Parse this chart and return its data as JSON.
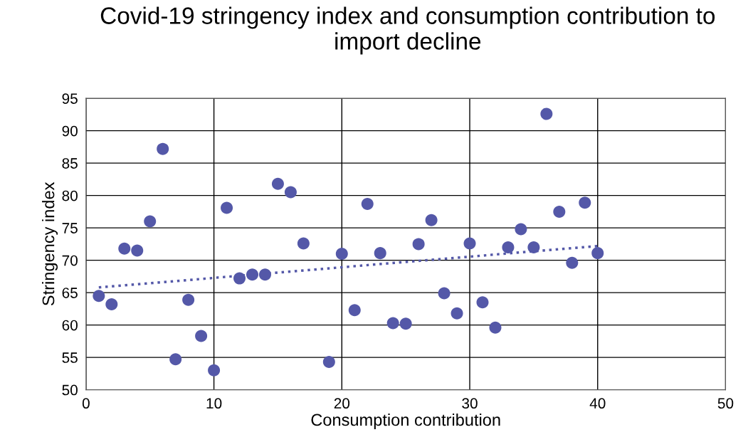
{
  "chart_data": {
    "type": "scatter",
    "title": "Covid-19 stringency index and consumption contribution to import decline",
    "xlabel": "Consumption contribution",
    "ylabel": "Stringency index",
    "xlim": [
      0,
      50
    ],
    "xticks": [
      0,
      10,
      20,
      30,
      40,
      50
    ],
    "ylim": [
      50,
      95
    ],
    "yticks": [
      50,
      55,
      60,
      65,
      70,
      75,
      80,
      85,
      90,
      95
    ],
    "grid": true,
    "marker": "circle",
    "series": [
      {
        "color": "#5458a8",
        "x": [
          1,
          2,
          3,
          4,
          5,
          6,
          7,
          8,
          9,
          10,
          11,
          12,
          13,
          14,
          15,
          16,
          17,
          19,
          20,
          21,
          22,
          23,
          24,
          25,
          26,
          27,
          28,
          29,
          30,
          31,
          32,
          33,
          34,
          35,
          36,
          37,
          38,
          39,
          40
        ],
        "values": [
          64.5,
          63.2,
          71.8,
          71.5,
          76.0,
          87.2,
          54.7,
          63.9,
          58.3,
          53.0,
          78.1,
          67.2,
          67.8,
          67.8,
          81.8,
          80.5,
          72.6,
          54.3,
          71.0,
          62.3,
          78.7,
          71.1,
          60.3,
          60.2,
          72.5,
          76.2,
          64.9,
          61.8,
          72.6,
          63.5,
          59.6,
          72.0,
          74.8,
          72.0,
          92.6,
          77.5,
          69.6,
          78.9,
          71.1
        ]
      },
      {
        "type": "line",
        "color": "#5458a8",
        "line_style": "dotted",
        "marker": "none",
        "x": [
          1,
          40
        ],
        "values": [
          65.8,
          72.2
        ]
      }
    ]
  }
}
